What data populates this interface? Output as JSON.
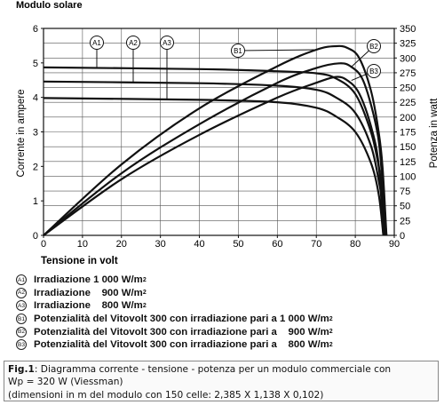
{
  "chart_data": {
    "type": "line",
    "title": "Modulo solare",
    "xlabel": "Tensione in volt",
    "ylabel_left": "Corrente in ampere",
    "ylabel_right": "Potenza in watt",
    "xlim": [
      0,
      90
    ],
    "ylim_left": [
      0,
      6
    ],
    "ylim_right": [
      0,
      350
    ],
    "x_ticks": [
      0,
      10,
      20,
      30,
      40,
      50,
      60,
      70,
      80,
      90
    ],
    "y_ticks_left": [
      0,
      1,
      2,
      3,
      4,
      5,
      6
    ],
    "y_ticks_right": [
      0,
      25,
      50,
      75,
      100,
      125,
      150,
      175,
      200,
      225,
      250,
      275,
      300,
      325,
      350
    ],
    "grid": true,
    "current_series": [
      {
        "marker": "A1",
        "isc": 4.87,
        "voc": 88,
        "points": [
          [
            0,
            4.87
          ],
          [
            40,
            4.82
          ],
          [
            60,
            4.76
          ],
          [
            70,
            4.7
          ],
          [
            75,
            4.55
          ],
          [
            80,
            4.1
          ],
          [
            84,
            3.0
          ],
          [
            86,
            2.0
          ],
          [
            87,
            1.2
          ],
          [
            88,
            0
          ]
        ]
      },
      {
        "marker": "A2",
        "isc": 4.46,
        "voc": 87.6,
        "points": [
          [
            0,
            4.46
          ],
          [
            40,
            4.41
          ],
          [
            60,
            4.34
          ],
          [
            70,
            4.22
          ],
          [
            75,
            4.0
          ],
          [
            80,
            3.55
          ],
          [
            84,
            2.6
          ],
          [
            86,
            1.6
          ],
          [
            87,
            0.9
          ],
          [
            87.6,
            0
          ]
        ]
      },
      {
        "marker": "A3",
        "isc": 3.98,
        "voc": 87.2,
        "points": [
          [
            0,
            3.98
          ],
          [
            40,
            3.93
          ],
          [
            60,
            3.86
          ],
          [
            70,
            3.7
          ],
          [
            75,
            3.45
          ],
          [
            80,
            3.0
          ],
          [
            84,
            2.1
          ],
          [
            86,
            1.2
          ],
          [
            87.2,
            0
          ]
        ]
      }
    ],
    "power_series": [
      {
        "marker": "B1",
        "peak_voltage": 75,
        "peak_power": 320,
        "points": [
          [
            0,
            0
          ],
          [
            20,
            120
          ],
          [
            40,
            215
          ],
          [
            60,
            286
          ],
          [
            70,
            314
          ],
          [
            75,
            320
          ],
          [
            78,
            317
          ],
          [
            81,
            300
          ],
          [
            84,
            245
          ],
          [
            86,
            175
          ],
          [
            87,
            115
          ],
          [
            88,
            0
          ]
        ]
      },
      {
        "marker": "B2",
        "peak_voltage": 76,
        "peak_power": 291,
        "points": [
          [
            0,
            0
          ],
          [
            20,
            105
          ],
          [
            40,
            188
          ],
          [
            60,
            258
          ],
          [
            70,
            283
          ],
          [
            76,
            291
          ],
          [
            79,
            285
          ],
          [
            82,
            262
          ],
          [
            85,
            195
          ],
          [
            86.5,
            130
          ],
          [
            87.6,
            0
          ]
        ]
      },
      {
        "marker": "B3",
        "peak_voltage": 75,
        "peak_power": 268,
        "points": [
          [
            0,
            0
          ],
          [
            20,
            95
          ],
          [
            40,
            170
          ],
          [
            60,
            233
          ],
          [
            70,
            258
          ],
          [
            75,
            268
          ],
          [
            78,
            262
          ],
          [
            81,
            240
          ],
          [
            84,
            185
          ],
          [
            86,
            120
          ],
          [
            87.2,
            0
          ]
        ]
      }
    ]
  },
  "legend": [
    {
      "marker": "A1",
      "label": "Irradiazione",
      "value": " 1 000 W/m",
      "sup": "2"
    },
    {
      "marker": "A2",
      "label": "Irradiazione",
      "value": "    900 W/m",
      "sup": "2"
    },
    {
      "marker": "A3",
      "label": "Irradiazione",
      "value": "    800 W/m",
      "sup": "2"
    },
    {
      "marker": "B1",
      "label": "Potenzialità del Vitovolt 300 con irradiazione pari a",
      "value": " 1 000 W/m",
      "sup": "2"
    },
    {
      "marker": "B2",
      "label": "Potenzialità del Vitovolt 300 con irradiazione pari a",
      "value": "    900 W/m",
      "sup": "2"
    },
    {
      "marker": "B3",
      "label": "Potenzialità del Vitovolt 300 con irradiazione pari a",
      "value": "    800 W/m",
      "sup": "2"
    }
  ],
  "caption": {
    "fig": "Fig.1",
    "line1": ": Diagramma corrente - tensione - potenza per un modulo commerciale con",
    "line2": "Wp = 320 W (Viessman)",
    "line3": "(dimensioni in m del modulo con 150 celle: 2,385 X 1,138 X 0,102)"
  }
}
